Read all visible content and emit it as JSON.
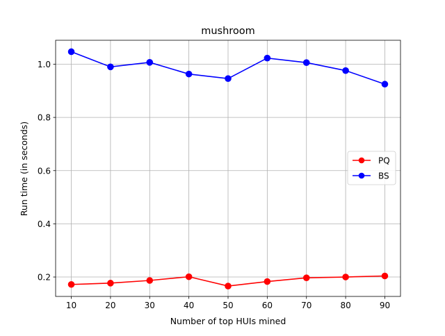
{
  "chart_data": {
    "type": "line",
    "title": "mushroom",
    "xlabel": "Number of top HUIs mined",
    "ylabel": "Run time (in seconds)",
    "x": [
      10,
      20,
      30,
      40,
      50,
      60,
      70,
      80,
      90
    ],
    "xlim": [
      6,
      94
    ],
    "ylim": [
      0.127,
      1.09
    ],
    "xticks": [
      10,
      20,
      30,
      40,
      50,
      60,
      70,
      80,
      90
    ],
    "yticks": [
      0.2,
      0.4,
      0.6,
      0.8,
      1.0
    ],
    "ytick_labels": [
      "0.2",
      "0.4",
      "0.6",
      "0.8",
      "1.0"
    ],
    "grid": true,
    "legend_position": "center-right",
    "series": [
      {
        "name": "PQ",
        "color": "#ff0000",
        "marker": "circle",
        "values": [
          0.172,
          0.177,
          0.187,
          0.201,
          0.166,
          0.183,
          0.197,
          0.2,
          0.204
        ]
      },
      {
        "name": "BS",
        "color": "#0000ff",
        "marker": "circle",
        "values": [
          1.047,
          0.99,
          1.007,
          0.963,
          0.946,
          1.023,
          1.006,
          0.976,
          0.925
        ]
      }
    ]
  }
}
